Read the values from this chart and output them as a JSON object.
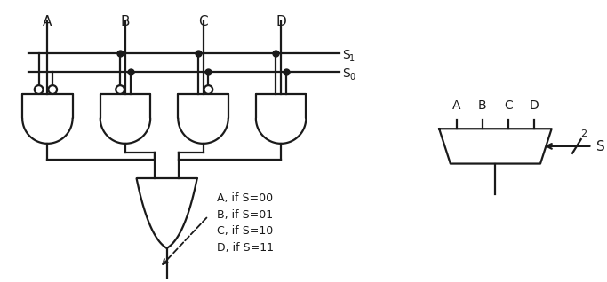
{
  "bg_color": "#ffffff",
  "line_color": "#1a1a1a",
  "text_color": "#1a1a1a",
  "inputs": [
    "A",
    "B",
    "C",
    "D"
  ],
  "annotation_lines": [
    "A, if S=00",
    "B, if S=01",
    "C, if S=10",
    "D, if S=11"
  ],
  "s1_label": "S",
  "s1_sub": "1",
  "s0_label": "S",
  "s0_sub": "0",
  "mux_labels": [
    "A",
    "B",
    "C",
    "D"
  ],
  "mux_s_label": "S",
  "mux_2_label": "2"
}
